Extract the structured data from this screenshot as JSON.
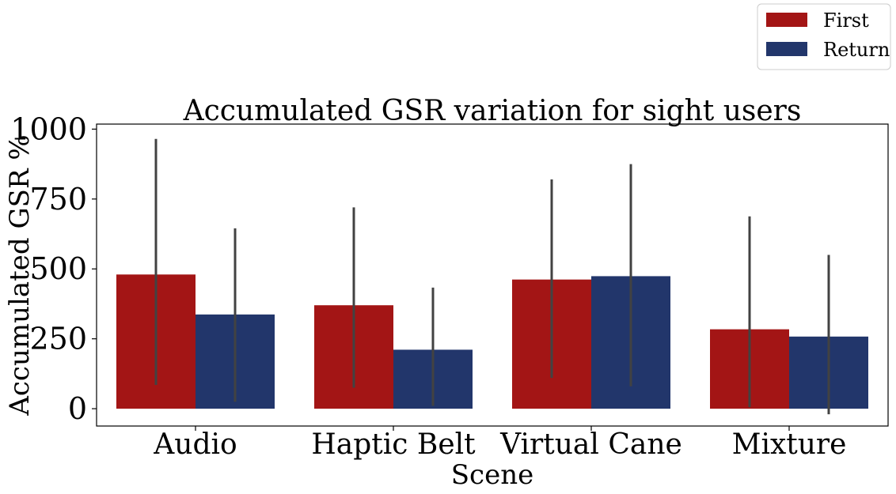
{
  "chart_data": {
    "type": "bar",
    "title": "Accumulated GSR variation for sight users",
    "xlabel": "Scene",
    "ylabel": "Accumulated GSR %",
    "categories": [
      "Audio",
      "Haptic Belt",
      "Virtual Cane",
      "Mixture"
    ],
    "series": [
      {
        "name": "First",
        "color": "#a31515",
        "values": [
          480,
          370,
          462,
          284
        ],
        "ci_low": [
          85,
          75,
          110,
          5
        ],
        "ci_high": [
          965,
          720,
          820,
          688
        ]
      },
      {
        "name": "Return",
        "color": "#22366b",
        "values": [
          337,
          211,
          474,
          258
        ],
        "ci_low": [
          25,
          10,
          80,
          -20
        ],
        "ci_high": [
          645,
          433,
          875,
          550
        ]
      }
    ],
    "ylim": [
      -62,
      1018
    ],
    "yticks": [
      0,
      250,
      500,
      750,
      1000
    ],
    "grid": false,
    "legend_position": "top-right",
    "errorbar_color": "#424242"
  }
}
